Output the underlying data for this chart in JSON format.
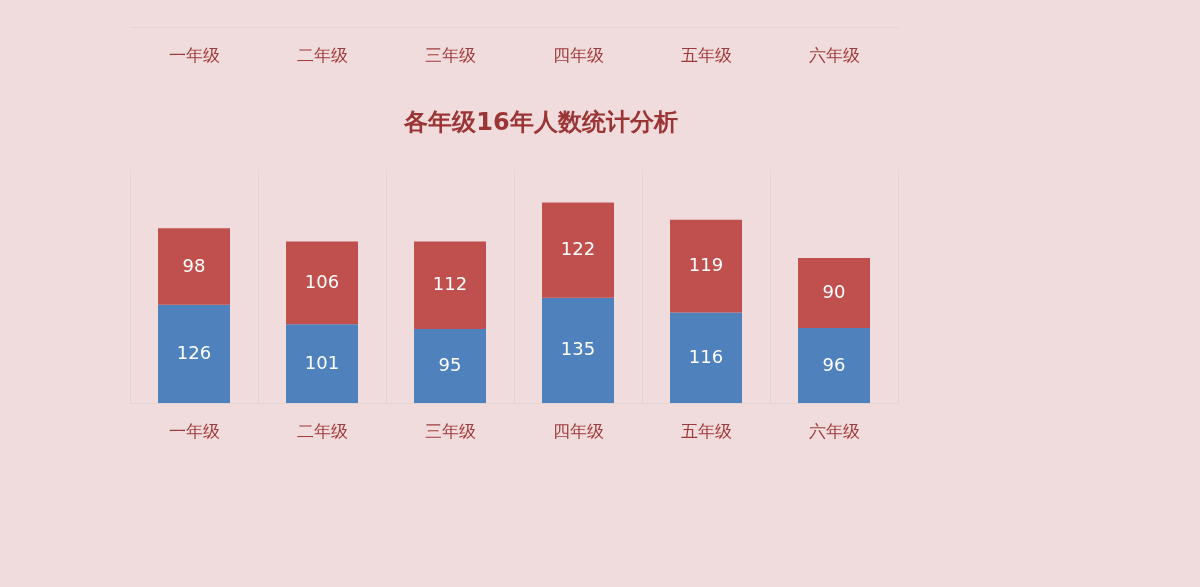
{
  "chart_data": [
    {
      "type": "other",
      "categories": [
        "一年级",
        "二年级",
        "三年级",
        "四年级",
        "五年级",
        "六年级"
      ]
    },
    {
      "type": "bar",
      "title": "各年级16年人数统计分析",
      "categories": [
        "一年级",
        "二年级",
        "三年级",
        "四年级",
        "五年级",
        "六年级"
      ],
      "stacked": true,
      "series": [
        {
          "color": "#4f81bd",
          "values": [
            126,
            101,
            95,
            135,
            116,
            96
          ]
        },
        {
          "color": "#c0504d",
          "values": [
            98,
            106,
            112,
            122,
            119,
            90
          ]
        }
      ],
      "ylim": [
        0,
        300
      ],
      "grid": "x",
      "data_labels": true,
      "tick_labels": "x"
    }
  ]
}
